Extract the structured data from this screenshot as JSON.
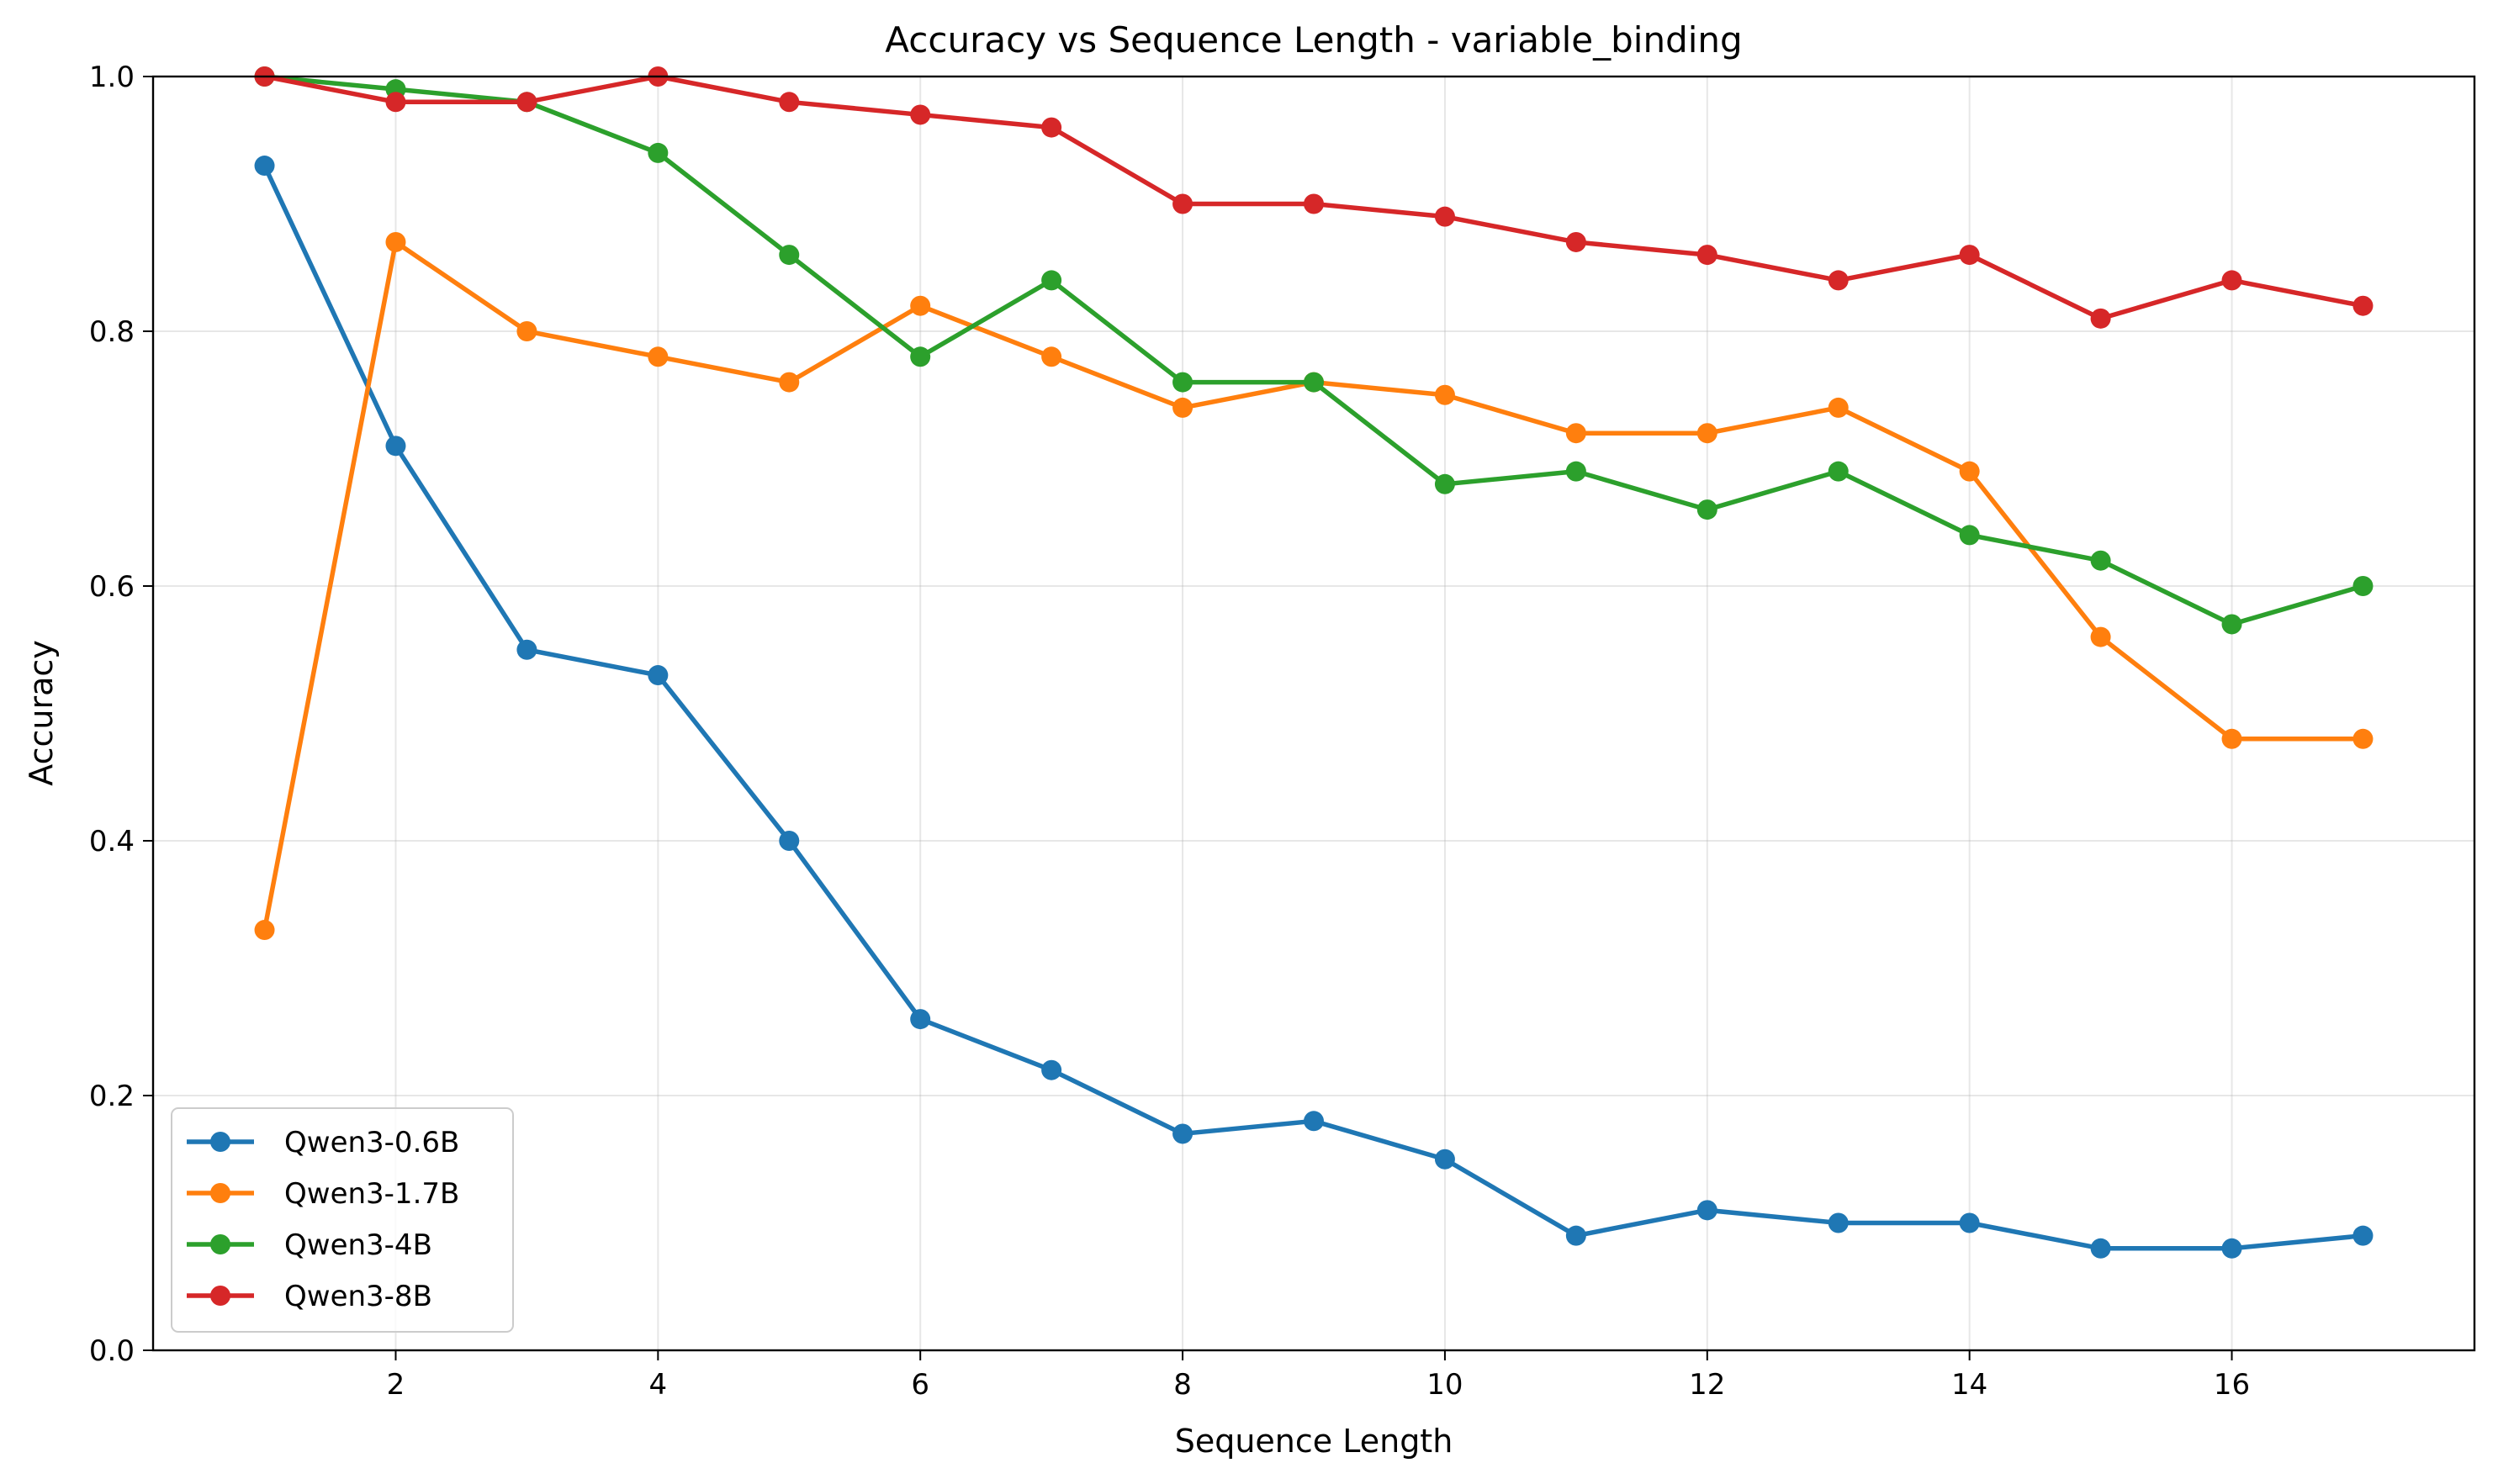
{
  "chart_data": {
    "type": "line",
    "title": "Accuracy vs Sequence Length - variable_binding",
    "xlabel": "Sequence Length",
    "ylabel": "Accuracy",
    "xlim": [
      0.15,
      17.85
    ],
    "ylim": [
      0.0,
      1.0
    ],
    "xticks": [
      2,
      4,
      6,
      8,
      10,
      12,
      14,
      16
    ],
    "yticks": [
      0.0,
      0.2,
      0.4,
      0.6,
      0.8,
      1.0
    ],
    "xtick_labels": [
      "2",
      "4",
      "6",
      "8",
      "10",
      "12",
      "14",
      "16"
    ],
    "ytick_labels": [
      "0.0",
      "0.2",
      "0.4",
      "0.6",
      "0.8",
      "1.0"
    ],
    "grid": true,
    "legend_position": "lower-left",
    "x": [
      1,
      2,
      3,
      4,
      5,
      6,
      7,
      8,
      9,
      10,
      11,
      12,
      13,
      14,
      15,
      16,
      17
    ],
    "series": [
      {
        "name": "Qwen3-0.6B",
        "color": "#1f77b4",
        "values": [
          0.93,
          0.71,
          0.55,
          0.53,
          0.4,
          0.26,
          0.22,
          0.17,
          0.18,
          0.15,
          0.09,
          0.11,
          0.1,
          0.1,
          0.08,
          0.08,
          0.09
        ]
      },
      {
        "name": "Qwen3-1.7B",
        "color": "#ff7f0e",
        "values": [
          0.33,
          0.87,
          0.8,
          0.78,
          0.76,
          0.82,
          0.78,
          0.74,
          0.76,
          0.75,
          0.72,
          0.72,
          0.74,
          0.69,
          0.56,
          0.48,
          0.48
        ]
      },
      {
        "name": "Qwen3-4B",
        "color": "#2ca02c",
        "values": [
          1.0,
          0.99,
          0.98,
          0.94,
          0.86,
          0.78,
          0.84,
          0.76,
          0.76,
          0.68,
          0.69,
          0.66,
          0.69,
          0.64,
          0.62,
          0.57,
          0.6
        ]
      },
      {
        "name": "Qwen3-8B",
        "color": "#d62728",
        "values": [
          1.0,
          0.98,
          0.98,
          1.0,
          0.98,
          0.97,
          0.96,
          0.9,
          0.9,
          0.89,
          0.87,
          0.86,
          0.84,
          0.86,
          0.81,
          0.84,
          0.82
        ]
      }
    ]
  }
}
